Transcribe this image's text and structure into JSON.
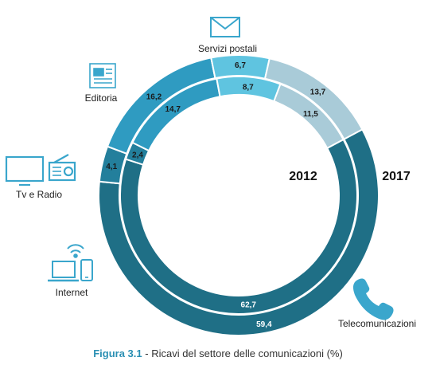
{
  "caption": {
    "figure_label": "Figura 3.1",
    "separator": " - ",
    "text": "Ricavi del settore delle comunicazioni (%)"
  },
  "chart_data": {
    "type": "donut",
    "title": "Ricavi del settore delle comunicazioni (%)",
    "categories": [
      "Telecomunicazioni",
      "Internet",
      "Tv e Radio",
      "Editoria",
      "Servizi postali"
    ],
    "series": [
      {
        "name": "2012",
        "ring": "inner",
        "values": [
          62.7,
          2.4,
          14.7,
          8.7,
          11.5
        ],
        "labels": [
          "62,7",
          "2,4",
          "14,7",
          "8,7",
          "11,5"
        ]
      },
      {
        "name": "2017",
        "ring": "outer",
        "values": [
          59.4,
          4.1,
          16.2,
          6.7,
          13.7
        ],
        "labels": [
          "59,4",
          "4,1",
          "16,2",
          "6,7",
          "13,7"
        ]
      }
    ],
    "colors": {
      "Telecomunicazioni": "#1f6f86",
      "Internet": "#237f9c",
      "Tv e Radio": "#2f9bc1",
      "Editoria": "#5fc4e0",
      "Servizi postali": "#a9cbd8"
    },
    "legend_icons": {
      "Telecomunicazioni": "telephone-icon",
      "Internet": "devices-wifi-icon",
      "Tv e Radio": "tv-radio-icon",
      "Editoria": "newspaper-icon",
      "Servizi postali": "envelope-icon"
    },
    "icon_color": "#3aa6cc"
  }
}
